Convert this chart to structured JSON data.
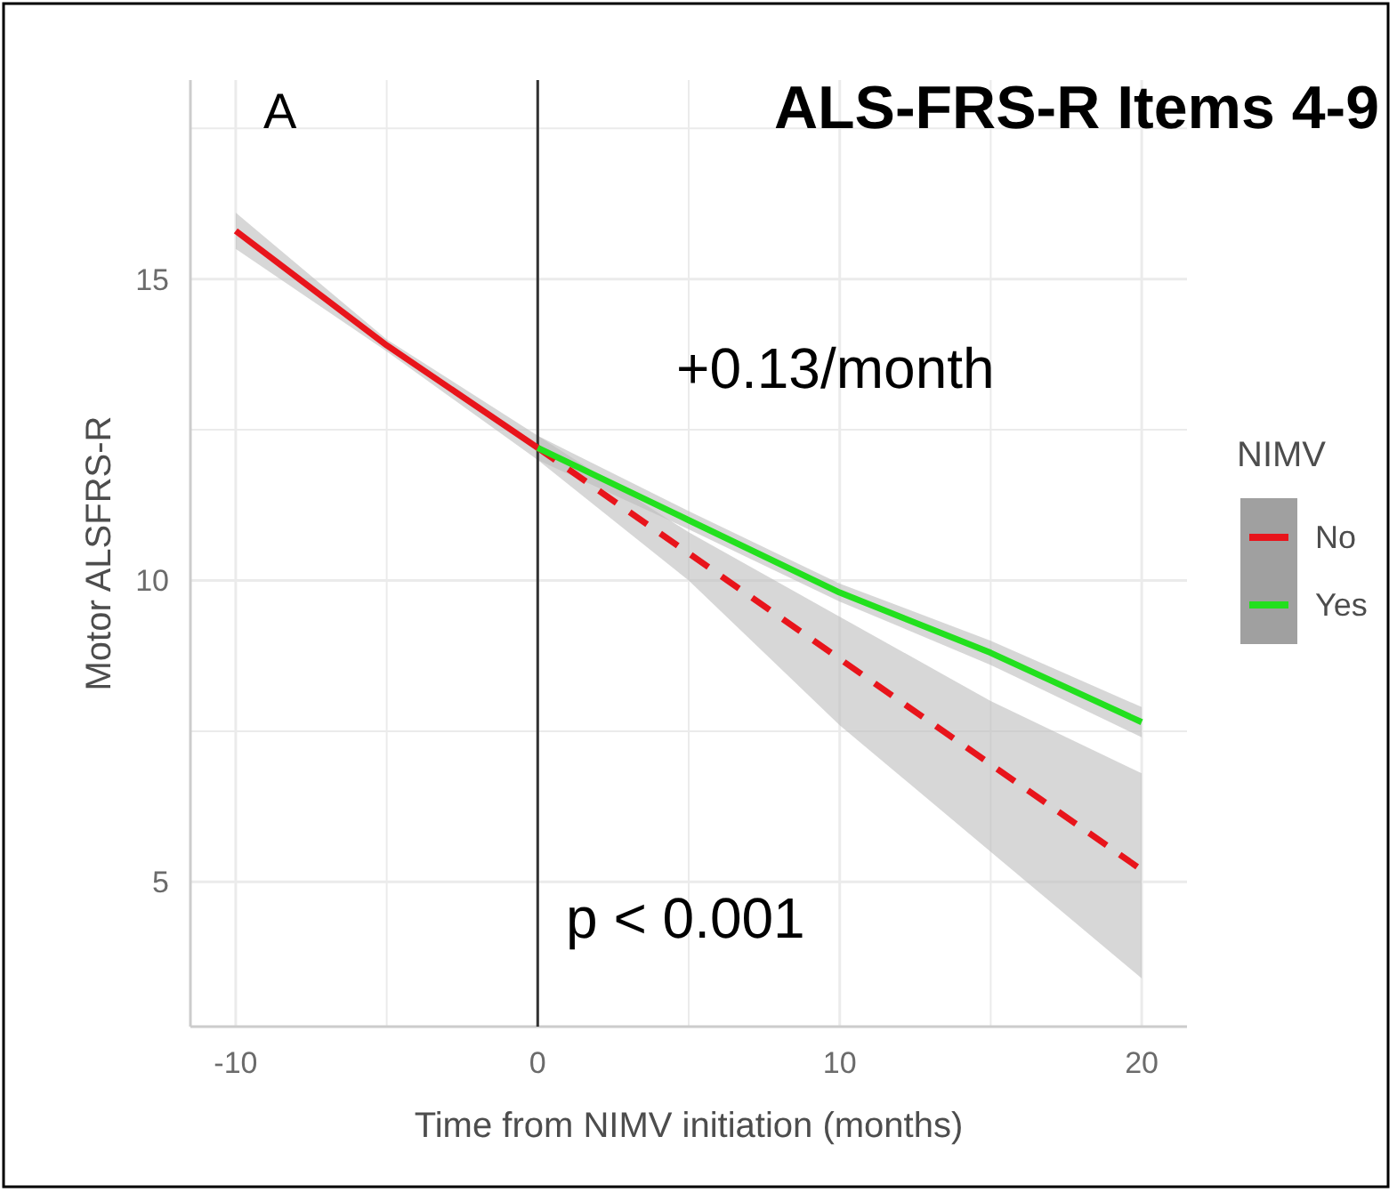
{
  "chart_data": {
    "type": "line",
    "title": "ALS-FRS-R Items 4-9",
    "xlabel": "Time from NIMV initiation (months)",
    "ylabel": "Motor ALSFRS-R",
    "legend_title": "NIMV",
    "legend": "right",
    "grid": true,
    "xlim": [
      -11.5,
      21.5
    ],
    "xticks": [
      -10,
      {
        "value": -5,
        "label": null
      },
      0,
      {
        "value": 5,
        "label": null
      },
      10,
      {
        "value": 15,
        "label": null
      },
      20
    ],
    "ylim": [
      2.6,
      18.3
    ],
    "yticks": [
      5,
      {
        "value": 7.5,
        "label": null
      },
      10,
      {
        "value": 12.5,
        "label": null
      },
      15,
      {
        "value": 17.5,
        "label": null
      }
    ],
    "ref_lines": [
      {
        "axis": "x",
        "value": 0,
        "color": "#333333"
      }
    ],
    "annotations": [
      "A",
      "+0.13/month",
      "p < 0.001"
    ],
    "series": [
      {
        "name": "No",
        "color": "#e8141b",
        "line_style": "solid",
        "x": [
          -10,
          -5,
          0
        ],
        "values": [
          15.8,
          13.9,
          12.2
        ],
        "lower": [
          15.5,
          13.8,
          12.0
        ],
        "upper": [
          16.1,
          14.0,
          12.4
        ]
      },
      {
        "color": "#e8141b",
        "line_style": "dashed",
        "x": [
          0,
          5,
          10,
          15,
          20
        ],
        "values": [
          12.2,
          10.45,
          8.7,
          6.95,
          5.2
        ],
        "lower": [
          12.0,
          10.0,
          7.6,
          5.5,
          3.4
        ],
        "upper": [
          12.4,
          10.8,
          9.4,
          8.0,
          6.8
        ]
      },
      {
        "name": "Yes",
        "color": "#22e01e",
        "line_style": "solid",
        "x": [
          0,
          5,
          10,
          15,
          20
        ],
        "values": [
          12.2,
          11.0,
          9.8,
          8.8,
          7.65
        ],
        "lower": [
          12.0,
          10.85,
          9.65,
          8.6,
          7.4
        ],
        "upper": [
          12.4,
          11.15,
          9.95,
          9.0,
          7.9
        ]
      }
    ]
  }
}
